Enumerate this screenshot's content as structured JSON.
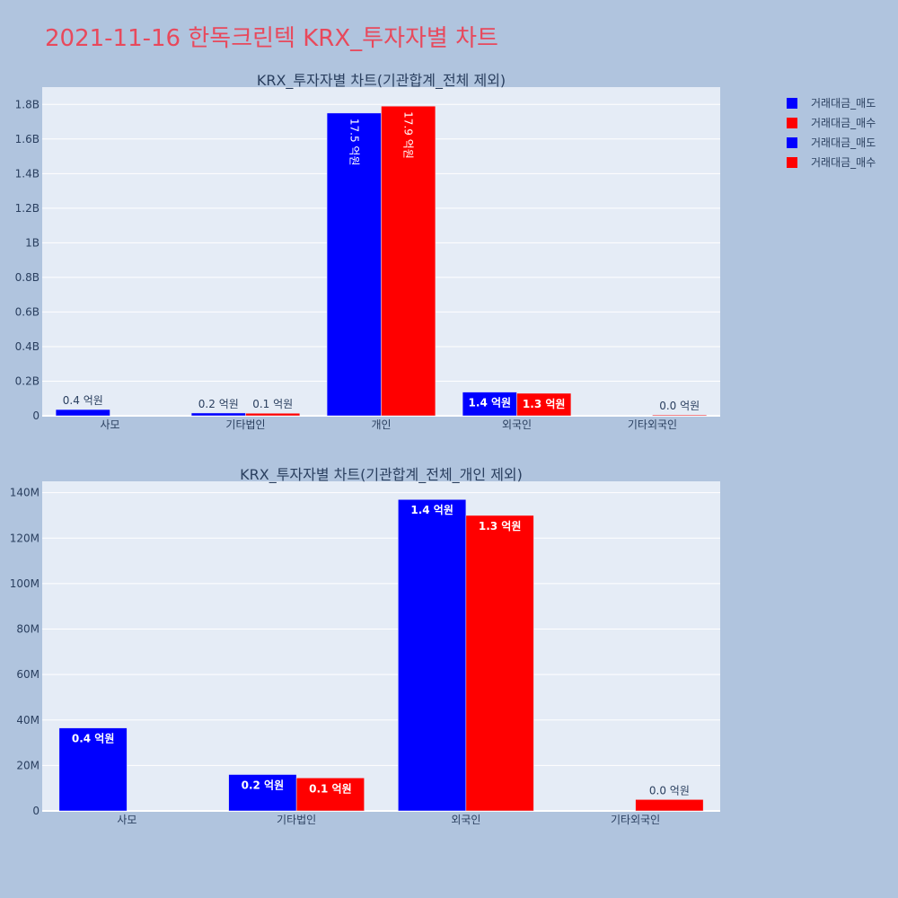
{
  "title": "2021-11-16 한독크린텍 KRX_투자자별 차트",
  "legend": [
    {
      "name": "거래대금_매도",
      "color": "#0000ff"
    },
    {
      "name": "거래대금_매수",
      "color": "#ff0000"
    },
    {
      "name": "거래대금_매도",
      "color": "#0000ff"
    },
    {
      "name": "거래대금_매수",
      "color": "#ff0000"
    }
  ],
  "chart_data": [
    {
      "type": "bar",
      "title": "KRX_투자자별 차트(기관합계_전체 제외)",
      "categories": [
        "사모",
        "기타법인",
        "개인",
        "외국인",
        "기타외국인"
      ],
      "series": [
        {
          "name": "거래대금_매도",
          "color": "#0000ff",
          "values": [
            36000000,
            16000000,
            1750000000,
            137000000,
            0
          ],
          "labels": [
            "0.4 억원",
            "0.2 억원",
            "17.5 억원",
            "1.4 억원",
            ""
          ]
        },
        {
          "name": "거래대금_매수",
          "color": "#ff0000",
          "values": [
            0,
            14500000,
            1790000000,
            130000000,
            5000000
          ],
          "labels": [
            "",
            "0.1 억원",
            "17.9 억원",
            "1.3 억원",
            "0.0 억원"
          ]
        }
      ],
      "yticks": [
        "0",
        "0.2B",
        "0.4B",
        "0.6B",
        "0.8B",
        "1B",
        "1.2B",
        "1.4B",
        "1.6B",
        "1.8B"
      ],
      "ytick_step": 200000000,
      "ylim": [
        0,
        1900000000
      ]
    },
    {
      "type": "bar",
      "title": "KRX_투자자별 차트(기관합계_전체_개인 제외)",
      "categories": [
        "사모",
        "기타법인",
        "외국인",
        "기타외국인"
      ],
      "series": [
        {
          "name": "거래대금_매도",
          "color": "#0000ff",
          "values": [
            36500000,
            16000000,
            137000000,
            0
          ],
          "labels": [
            "0.4 억원",
            "0.2 억원",
            "1.4 억원",
            ""
          ]
        },
        {
          "name": "거래대금_매수",
          "color": "#ff0000",
          "values": [
            0,
            14500000,
            130000000,
            5000000
          ],
          "labels": [
            "",
            "0.1 억원",
            "1.3 억원",
            "0.0 억원"
          ]
        }
      ],
      "yticks": [
        "0",
        "20M",
        "40M",
        "60M",
        "80M",
        "100M",
        "120M",
        "140M"
      ],
      "ytick_step": 20000000,
      "ylim": [
        0,
        145000000
      ]
    }
  ]
}
